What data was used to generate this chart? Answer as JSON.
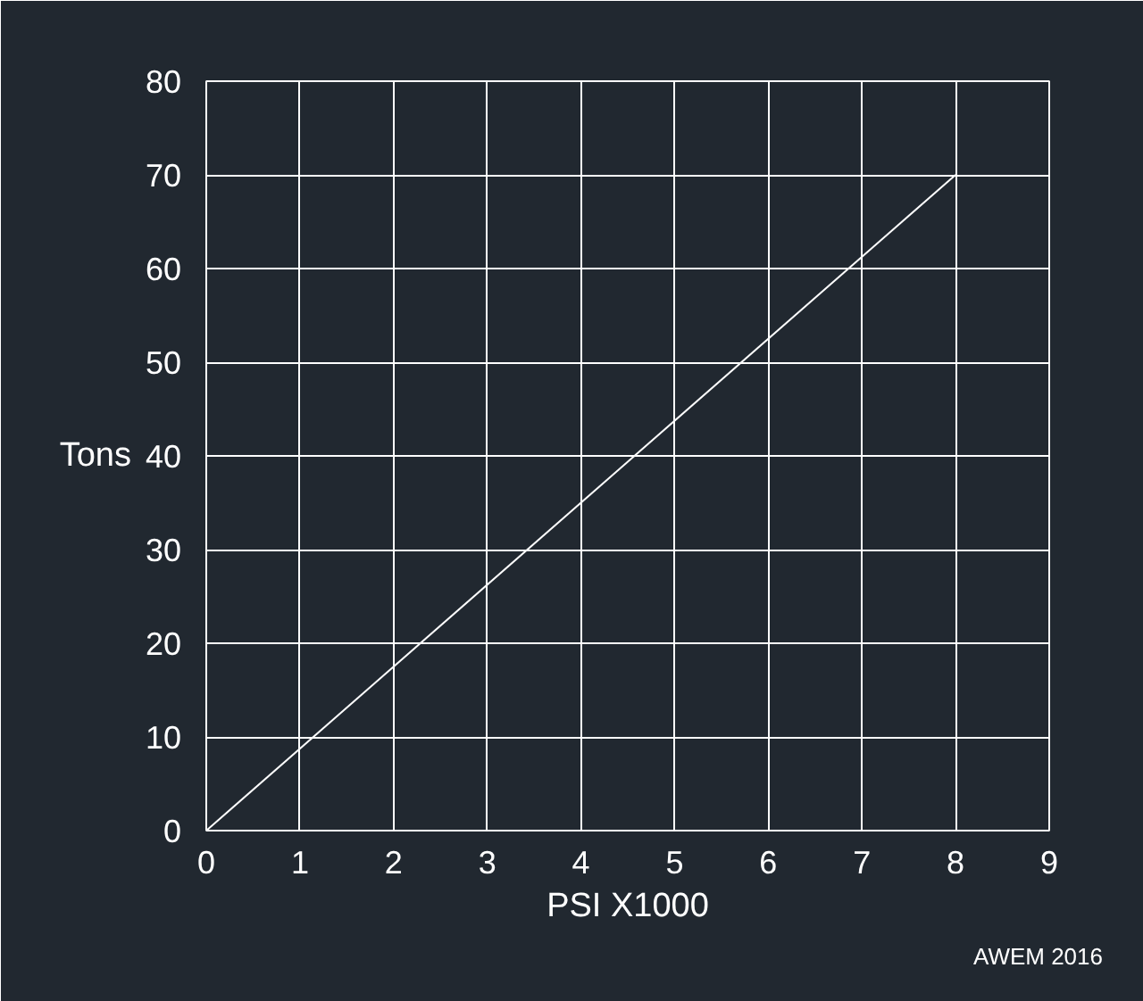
{
  "chart_data": {
    "type": "line",
    "xlabel": "PSI X1000",
    "ylabel": "Tons",
    "x": [
      0,
      8
    ],
    "series": [
      {
        "color": "#ffffff",
        "values": [
          0,
          70
        ]
      }
    ],
    "xlim": [
      0,
      9
    ],
    "ylim": [
      0,
      80
    ],
    "xticks": [
      0,
      1,
      2,
      3,
      4,
      5,
      6,
      7,
      8,
      9
    ],
    "yticks": [
      0,
      10,
      20,
      30,
      40,
      50,
      60,
      70,
      80
    ],
    "grid": true,
    "annotations": [
      "AWEM 2016"
    ]
  }
}
